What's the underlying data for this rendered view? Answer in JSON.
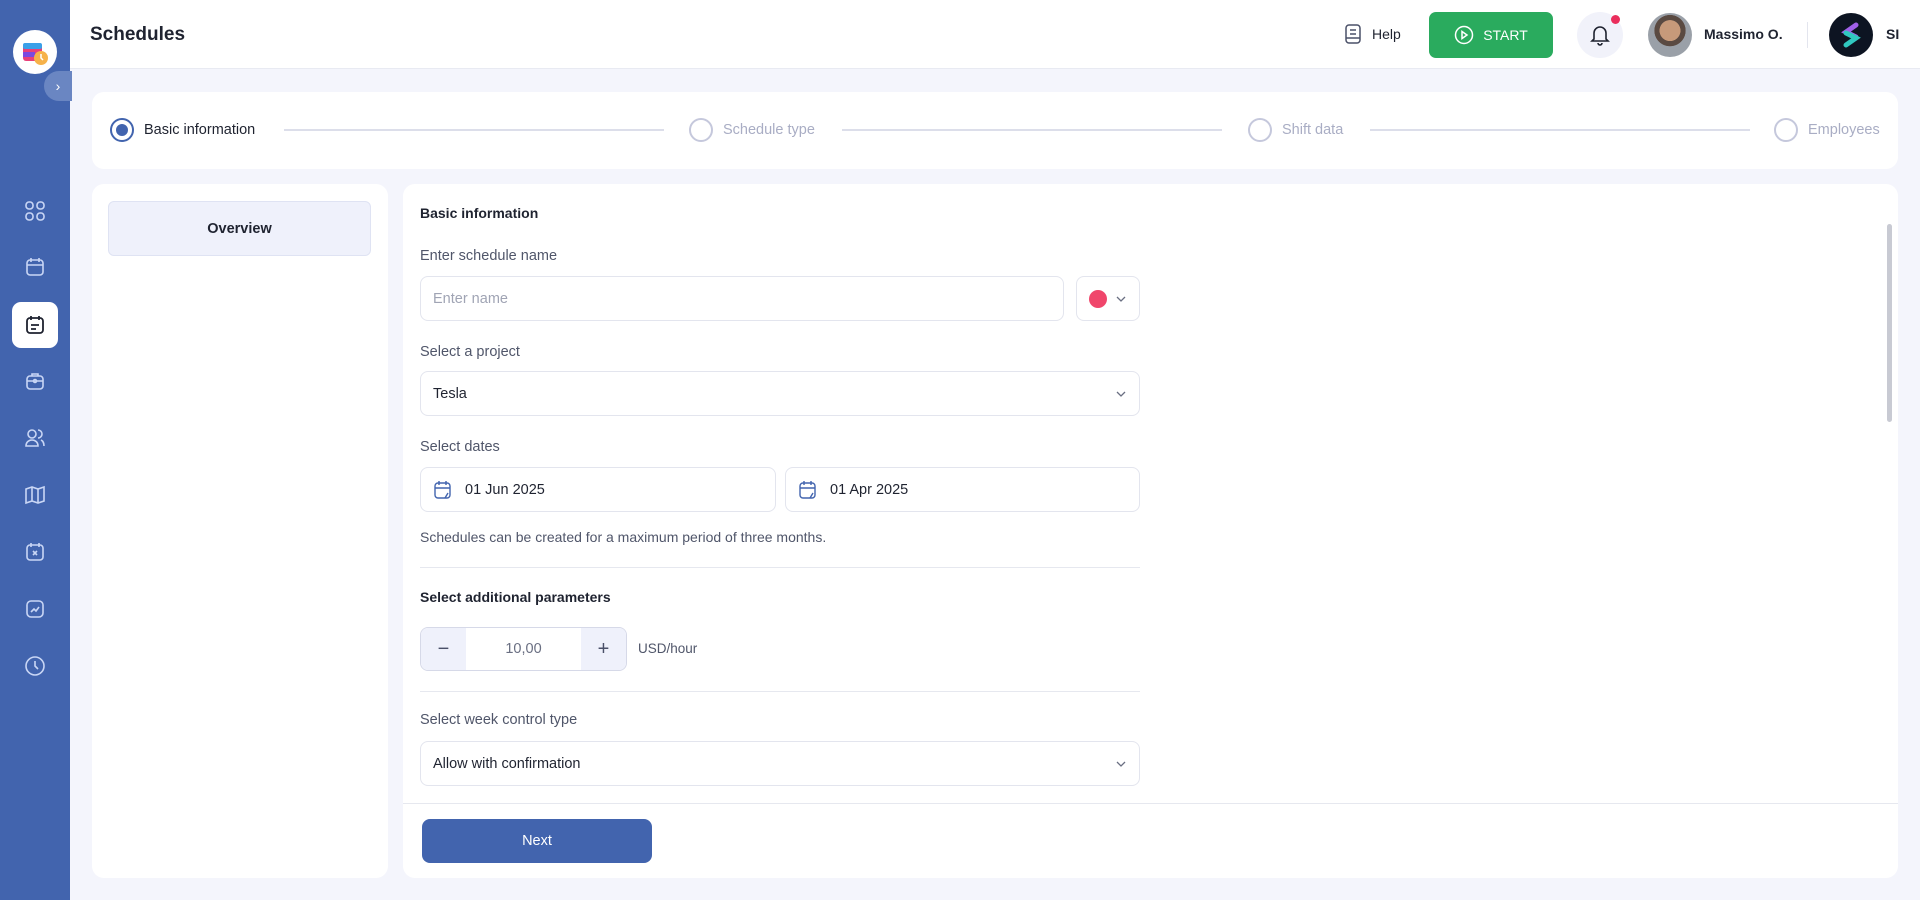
{
  "sidebar": {
    "items": [
      {
        "name": "dashboard",
        "active": false
      },
      {
        "name": "calendar",
        "active": false
      },
      {
        "name": "schedules",
        "active": true
      },
      {
        "name": "projects",
        "active": false
      },
      {
        "name": "users",
        "active": false
      },
      {
        "name": "map",
        "active": false
      },
      {
        "name": "absences",
        "active": false
      },
      {
        "name": "reports",
        "active": false
      },
      {
        "name": "time",
        "active": false
      }
    ]
  },
  "header": {
    "title": "Schedules",
    "help": "Help",
    "start": "START",
    "user": "Massimo O.",
    "org": "SI"
  },
  "stepper": {
    "steps": [
      "Basic information",
      "Schedule type",
      "Shift data",
      "Employees"
    ],
    "active_index": 0
  },
  "left": {
    "overview": "Overview"
  },
  "form": {
    "section_title": "Basic information",
    "name_label": "Enter schedule name",
    "name_placeholder": "Enter name",
    "name_value": "",
    "color": "#f0466b",
    "project_label": "Select a project",
    "project_value": "Tesla",
    "dates_label": "Select dates",
    "date_start": "01 Jun 2025",
    "date_end": "01 Apr 2025",
    "dates_hint": "Schedules can be created for a maximum period of three months.",
    "params_title": "Select additional parameters",
    "rate": "10,00",
    "rate_unit": "USD/hour",
    "week_label": "Select week control type",
    "week_value": "Allow with confirmation",
    "next": "Next"
  },
  "colors": {
    "primary": "#4264ae",
    "start": "#2aab5e",
    "notification": "#ea2e5c"
  }
}
